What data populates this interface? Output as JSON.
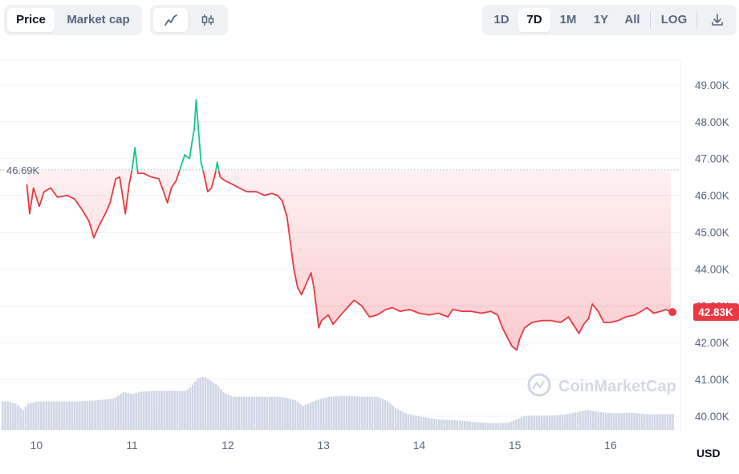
{
  "toolbar": {
    "metric_tabs": [
      {
        "label": "Price",
        "active": true
      },
      {
        "label": "Market cap",
        "active": false
      }
    ],
    "chart_type_icons": [
      {
        "icon": "line-chart-icon",
        "active": true
      },
      {
        "icon": "candlestick-icon",
        "active": false
      }
    ],
    "ranges": [
      {
        "label": "1D",
        "active": false
      },
      {
        "label": "7D",
        "active": true
      },
      {
        "label": "1M",
        "active": false
      },
      {
        "label": "1Y",
        "active": false
      },
      {
        "label": "All",
        "active": false
      }
    ],
    "log_label": "LOG",
    "download_icon": "download-icon"
  },
  "chart_data": {
    "type": "area",
    "x_unit": "day",
    "xlim": [
      9.62,
      16.73
    ],
    "ylim": [
      39.7,
      49.4
    ],
    "y_ticks": [
      "40.00K",
      "41.00K",
      "42.00K",
      "43.00K",
      "44.00K",
      "45.00K",
      "46.00K",
      "47.00K",
      "48.00K",
      "49.00K"
    ],
    "y_tick_values": [
      40,
      41,
      42,
      43,
      44,
      45,
      46,
      47,
      48,
      49
    ],
    "x_ticks": [
      "10",
      "11",
      "12",
      "13",
      "14",
      "15",
      "16"
    ],
    "x_tick_values": [
      10,
      11,
      12,
      13,
      14,
      15,
      16
    ],
    "reference_label": "46.69K",
    "reference_value": 46.69,
    "current_label": "42.83K",
    "current_value": 42.83,
    "axis_unit": "USD",
    "watermark": "CoinMarketCap",
    "colors": {
      "up": "#16c784",
      "down": "#ea3943",
      "volume": "#cfd6e4",
      "grid": "#eff2f5"
    },
    "price_series": [
      [
        9.9,
        46.3
      ],
      [
        9.93,
        45.5
      ],
      [
        9.97,
        46.2
      ],
      [
        10.03,
        45.7
      ],
      [
        10.08,
        46.1
      ],
      [
        10.15,
        46.2
      ],
      [
        10.22,
        45.95
      ],
      [
        10.32,
        46.0
      ],
      [
        10.4,
        45.9
      ],
      [
        10.48,
        45.6
      ],
      [
        10.55,
        45.3
      ],
      [
        10.6,
        44.85
      ],
      [
        10.66,
        45.2
      ],
      [
        10.72,
        45.5
      ],
      [
        10.77,
        45.8
      ],
      [
        10.83,
        46.45
      ],
      [
        10.87,
        46.5
      ],
      [
        10.9,
        46.0
      ],
      [
        10.93,
        45.5
      ],
      [
        10.97,
        46.3
      ],
      [
        11.0,
        46.7
      ],
      [
        11.03,
        47.3
      ],
      [
        11.06,
        46.6
      ],
      [
        11.12,
        46.6
      ],
      [
        11.2,
        46.5
      ],
      [
        11.28,
        46.45
      ],
      [
        11.33,
        46.1
      ],
      [
        11.37,
        45.8
      ],
      [
        11.41,
        46.2
      ],
      [
        11.46,
        46.4
      ],
      [
        11.5,
        46.7
      ],
      [
        11.55,
        47.1
      ],
      [
        11.6,
        47.0
      ],
      [
        11.63,
        47.5
      ],
      [
        11.65,
        47.8
      ],
      [
        11.67,
        48.6
      ],
      [
        11.69,
        47.9
      ],
      [
        11.72,
        46.9
      ],
      [
        11.75,
        46.6
      ],
      [
        11.79,
        46.1
      ],
      [
        11.83,
        46.2
      ],
      [
        11.87,
        46.6
      ],
      [
        11.89,
        46.9
      ],
      [
        11.92,
        46.5
      ],
      [
        11.97,
        46.4
      ],
      [
        12.05,
        46.3
      ],
      [
        12.12,
        46.2
      ],
      [
        12.2,
        46.1
      ],
      [
        12.3,
        46.1
      ],
      [
        12.38,
        46.0
      ],
      [
        12.46,
        46.05
      ],
      [
        12.52,
        46.0
      ],
      [
        12.57,
        45.85
      ],
      [
        12.62,
        45.4
      ],
      [
        12.66,
        44.6
      ],
      [
        12.69,
        44.0
      ],
      [
        12.73,
        43.5
      ],
      [
        12.77,
        43.3
      ],
      [
        12.82,
        43.6
      ],
      [
        12.87,
        43.9
      ],
      [
        12.9,
        43.5
      ],
      [
        12.93,
        42.85
      ],
      [
        12.95,
        42.4
      ],
      [
        12.98,
        42.6
      ],
      [
        13.05,
        42.75
      ],
      [
        13.1,
        42.5
      ],
      [
        13.18,
        42.75
      ],
      [
        13.25,
        42.95
      ],
      [
        13.32,
        43.15
      ],
      [
        13.4,
        43.0
      ],
      [
        13.48,
        42.7
      ],
      [
        13.56,
        42.75
      ],
      [
        13.65,
        42.9
      ],
      [
        13.72,
        42.95
      ],
      [
        13.8,
        42.85
      ],
      [
        13.9,
        42.9
      ],
      [
        14.0,
        42.8
      ],
      [
        14.1,
        42.75
      ],
      [
        14.2,
        42.8
      ],
      [
        14.3,
        42.7
      ],
      [
        14.35,
        42.9
      ],
      [
        14.45,
        42.85
      ],
      [
        14.55,
        42.85
      ],
      [
        14.65,
        42.8
      ],
      [
        14.75,
        42.85
      ],
      [
        14.82,
        42.75
      ],
      [
        14.87,
        42.4
      ],
      [
        14.92,
        42.15
      ],
      [
        14.97,
        41.9
      ],
      [
        15.02,
        41.8
      ],
      [
        15.05,
        42.1
      ],
      [
        15.1,
        42.4
      ],
      [
        15.18,
        42.55
      ],
      [
        15.28,
        42.6
      ],
      [
        15.38,
        42.6
      ],
      [
        15.48,
        42.55
      ],
      [
        15.56,
        42.7
      ],
      [
        15.62,
        42.45
      ],
      [
        15.67,
        42.25
      ],
      [
        15.72,
        42.5
      ],
      [
        15.77,
        42.65
      ],
      [
        15.81,
        43.05
      ],
      [
        15.87,
        42.85
      ],
      [
        15.93,
        42.55
      ],
      [
        16.0,
        42.55
      ],
      [
        16.08,
        42.6
      ],
      [
        16.16,
        42.7
      ],
      [
        16.25,
        42.75
      ],
      [
        16.32,
        42.85
      ],
      [
        16.38,
        42.95
      ],
      [
        16.45,
        42.8
      ],
      [
        16.52,
        42.85
      ],
      [
        16.58,
        42.9
      ],
      [
        16.63,
        42.83
      ]
    ],
    "volume_series": [
      [
        9.62,
        0.6
      ],
      [
        9.7,
        0.6
      ],
      [
        9.78,
        0.55
      ],
      [
        9.85,
        0.42
      ],
      [
        9.9,
        0.55
      ],
      [
        10.0,
        0.6
      ],
      [
        10.2,
        0.6
      ],
      [
        10.4,
        0.6
      ],
      [
        10.6,
        0.62
      ],
      [
        10.8,
        0.66
      ],
      [
        10.9,
        0.8
      ],
      [
        11.0,
        0.75
      ],
      [
        11.05,
        0.8
      ],
      [
        11.2,
        0.82
      ],
      [
        11.4,
        0.83
      ],
      [
        11.55,
        0.82
      ],
      [
        11.6,
        0.9
      ],
      [
        11.68,
        1.1
      ],
      [
        11.75,
        1.12
      ],
      [
        11.8,
        1.05
      ],
      [
        11.88,
        0.95
      ],
      [
        11.95,
        0.78
      ],
      [
        12.05,
        0.7
      ],
      [
        12.3,
        0.7
      ],
      [
        12.5,
        0.7
      ],
      [
        12.6,
        0.68
      ],
      [
        12.7,
        0.62
      ],
      [
        12.78,
        0.5
      ],
      [
        12.82,
        0.55
      ],
      [
        12.95,
        0.65
      ],
      [
        13.05,
        0.7
      ],
      [
        13.2,
        0.72
      ],
      [
        13.4,
        0.7
      ],
      [
        13.55,
        0.7
      ],
      [
        13.65,
        0.62
      ],
      [
        13.75,
        0.45
      ],
      [
        13.85,
        0.35
      ],
      [
        14.0,
        0.28
      ],
      [
        14.2,
        0.22
      ],
      [
        14.4,
        0.2
      ],
      [
        14.6,
        0.16
      ],
      [
        14.8,
        0.14
      ],
      [
        14.92,
        0.15
      ],
      [
        15.0,
        0.22
      ],
      [
        15.1,
        0.3
      ],
      [
        15.3,
        0.3
      ],
      [
        15.5,
        0.32
      ],
      [
        15.65,
        0.38
      ],
      [
        15.75,
        0.42
      ],
      [
        15.85,
        0.38
      ],
      [
        16.0,
        0.35
      ],
      [
        16.2,
        0.36
      ],
      [
        16.4,
        0.33
      ],
      [
        16.6,
        0.33
      ],
      [
        16.66,
        0.33
      ]
    ]
  }
}
